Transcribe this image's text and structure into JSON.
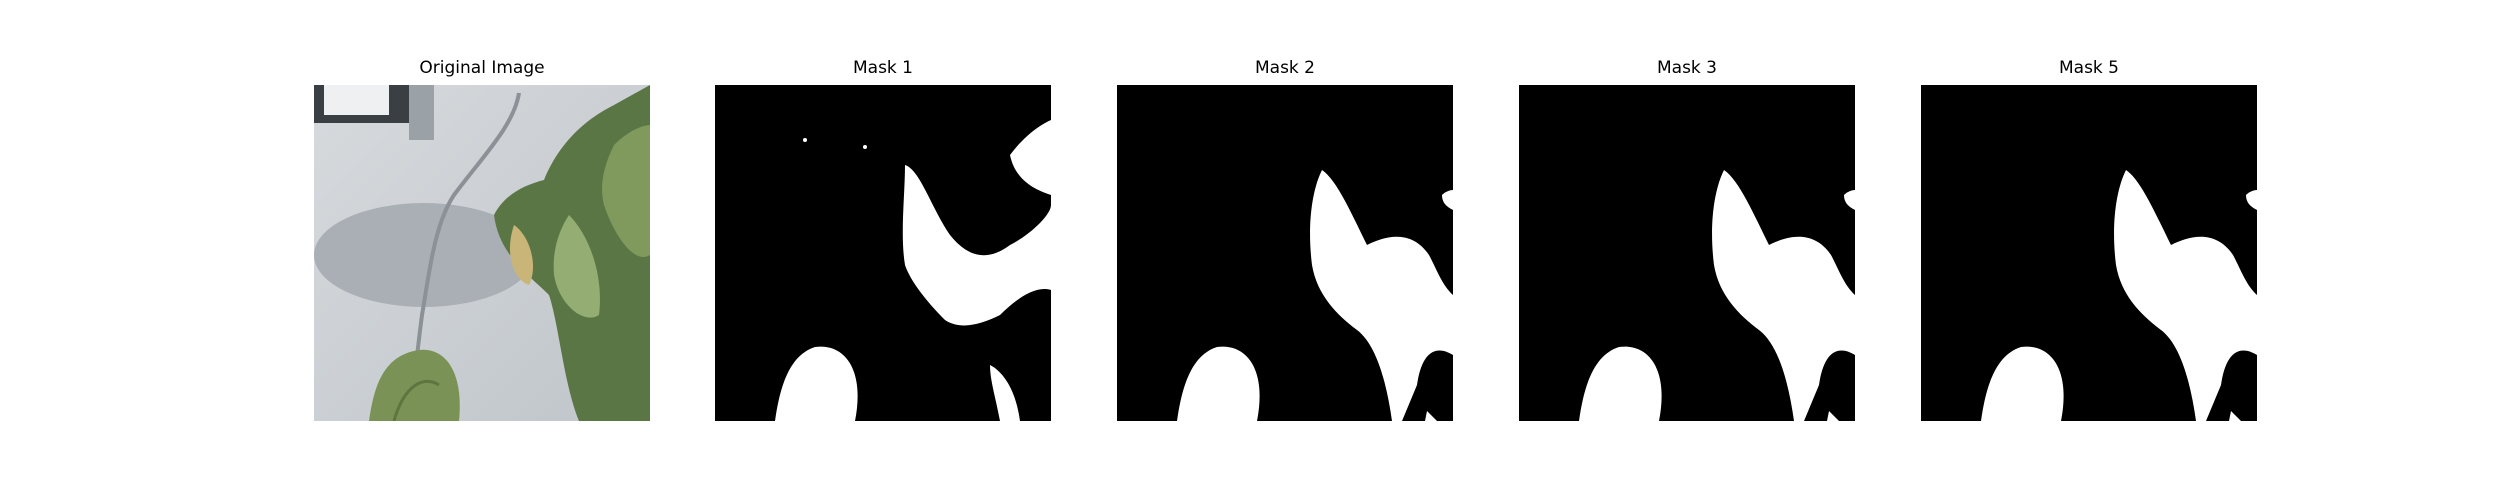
{
  "panels": [
    {
      "title": "Original Image",
      "kind": "photo",
      "description_icon": "photo-icon"
    },
    {
      "title": "Mask 1",
      "kind": "mask"
    },
    {
      "title": "Mask 2",
      "kind": "mask"
    },
    {
      "title": "Mask 3",
      "kind": "mask"
    },
    {
      "title": "Mask 5",
      "kind": "mask"
    }
  ],
  "colors": {
    "background": "#ffffff",
    "mask_bg": "#000000",
    "mask_fg": "#ffffff",
    "wall": "#c9ced3",
    "leaf_dark": "#4f6b3a",
    "leaf_light": "#8ea56a"
  }
}
